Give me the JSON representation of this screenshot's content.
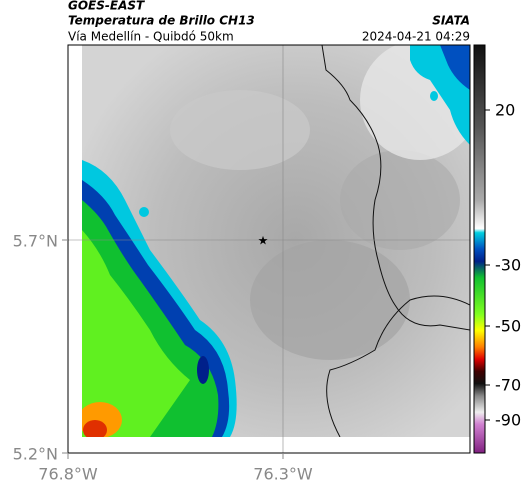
{
  "header": {
    "source": "GOES-EAST",
    "title": "Temperatura de Brillo CH13",
    "org": "SIATA",
    "subtitle": "Vía Medellín - Quibdó 50km",
    "datetime": "2024-04-21 04:29"
  },
  "axes": {
    "lat_labels": [
      "5.7°N",
      "5.2°N"
    ],
    "lon_labels": [
      "76.8°W",
      "76.3°W"
    ]
  },
  "colorbar": {
    "ticks": [
      20,
      -30,
      -50,
      -70,
      -90
    ]
  }
}
